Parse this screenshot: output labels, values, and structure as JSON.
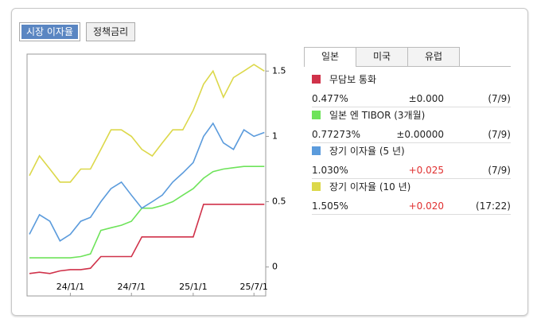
{
  "market_tabs": [
    "시장 이자율",
    "정책금리"
  ],
  "region_tabs": [
    "일본",
    "미국",
    "유럽"
  ],
  "chart_data": {
    "type": "line",
    "x": [
      "23/9/1",
      "23/10/1",
      "23/11/1",
      "23/12/1",
      "24/1/1",
      "24/2/1",
      "24/3/1",
      "24/4/1",
      "24/5/1",
      "24/6/1",
      "24/7/1",
      "24/8/1",
      "24/9/1",
      "24/10/1",
      "24/11/1",
      "24/12/1",
      "25/1/1",
      "25/2/1",
      "25/3/1",
      "25/4/1",
      "25/5/1",
      "25/6/1",
      "25/7/1",
      "25/8/1"
    ],
    "xlim": [
      "23/8/25",
      "25/8/5"
    ],
    "xticks": [
      "24/1/1",
      "24/7/1",
      "25/1/1",
      "25/7/1"
    ],
    "ylim": [
      -0.1,
      1.63
    ],
    "yticks": [
      0,
      0.5,
      1,
      1.5
    ],
    "series": [
      {
        "name": "무담보 통화",
        "color": "#d0324a",
        "values": [
          -0.05,
          -0.04,
          -0.05,
          -0.03,
          -0.02,
          -0.02,
          -0.01,
          0.08,
          0.08,
          0.08,
          0.08,
          0.23,
          0.23,
          0.23,
          0.23,
          0.23,
          0.23,
          0.48,
          0.48,
          0.48,
          0.48,
          0.48,
          0.48,
          0.48
        ]
      },
      {
        "name": "일본 엔 TIBOR (3개월)",
        "color": "#6ee35a",
        "values": [
          0.07,
          0.07,
          0.07,
          0.07,
          0.07,
          0.08,
          0.1,
          0.28,
          0.3,
          0.32,
          0.35,
          0.45,
          0.45,
          0.47,
          0.5,
          0.55,
          0.6,
          0.68,
          0.73,
          0.75,
          0.76,
          0.77,
          0.77,
          0.77
        ]
      },
      {
        "name": "장기 이자율 (5 년)",
        "color": "#5b9bdc",
        "values": [
          0.25,
          0.4,
          0.35,
          0.2,
          0.25,
          0.35,
          0.38,
          0.5,
          0.6,
          0.65,
          0.55,
          0.45,
          0.5,
          0.55,
          0.65,
          0.72,
          0.8,
          1.0,
          1.1,
          0.95,
          0.9,
          1.05,
          1.0,
          1.03
        ]
      },
      {
        "name": "장기 이자율 (10 년)",
        "color": "#dcd84a",
        "values": [
          0.7,
          0.85,
          0.75,
          0.65,
          0.65,
          0.75,
          0.75,
          0.9,
          1.05,
          1.05,
          1.0,
          0.9,
          0.85,
          0.95,
          1.05,
          1.05,
          1.2,
          1.4,
          1.5,
          1.3,
          1.45,
          1.5,
          1.55,
          1.5
        ]
      }
    ]
  },
  "rates": [
    {
      "value": "0.477%",
      "change": "±0.000",
      "date": "(7/9)"
    },
    {
      "value": "0.77273%",
      "change": "±0.00000",
      "date": "(7/9)"
    },
    {
      "value": "1.030%",
      "change": "+0.025",
      "date": "(7/9)"
    },
    {
      "value": "1.505%",
      "change": "+0.020",
      "date": "(17:22)"
    }
  ]
}
